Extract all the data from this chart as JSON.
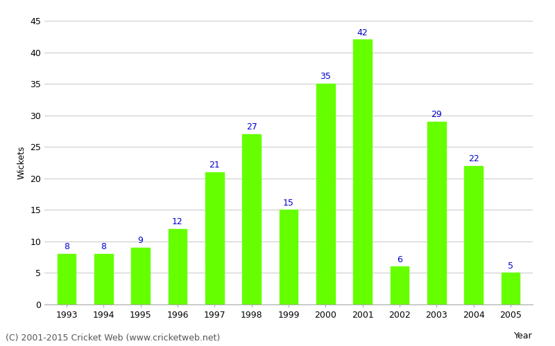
{
  "years": [
    "1993",
    "1994",
    "1995",
    "1996",
    "1997",
    "1998",
    "1999",
    "2000",
    "2001",
    "2002",
    "2003",
    "2004",
    "2005"
  ],
  "values": [
    8,
    8,
    9,
    12,
    21,
    27,
    15,
    35,
    42,
    6,
    29,
    22,
    5
  ],
  "bar_color": "#66ff00",
  "bar_edgecolor": "#66ff00",
  "label_color": "#0000cc",
  "label_fontsize": 9,
  "xlabel": "Year",
  "ylabel": "Wickets",
  "ylim": [
    0,
    45
  ],
  "yticks": [
    0,
    5,
    10,
    15,
    20,
    25,
    30,
    35,
    40,
    45
  ],
  "background_color": "#ffffff",
  "grid_color": "#cccccc",
  "footer": "(C) 2001-2015 Cricket Web (www.cricketweb.net)",
  "footer_fontsize": 9,
  "footer_color": "#555555",
  "xlabel_fontsize": 9,
  "ylabel_fontsize": 9,
  "tick_fontsize": 9,
  "bar_width": 0.5
}
